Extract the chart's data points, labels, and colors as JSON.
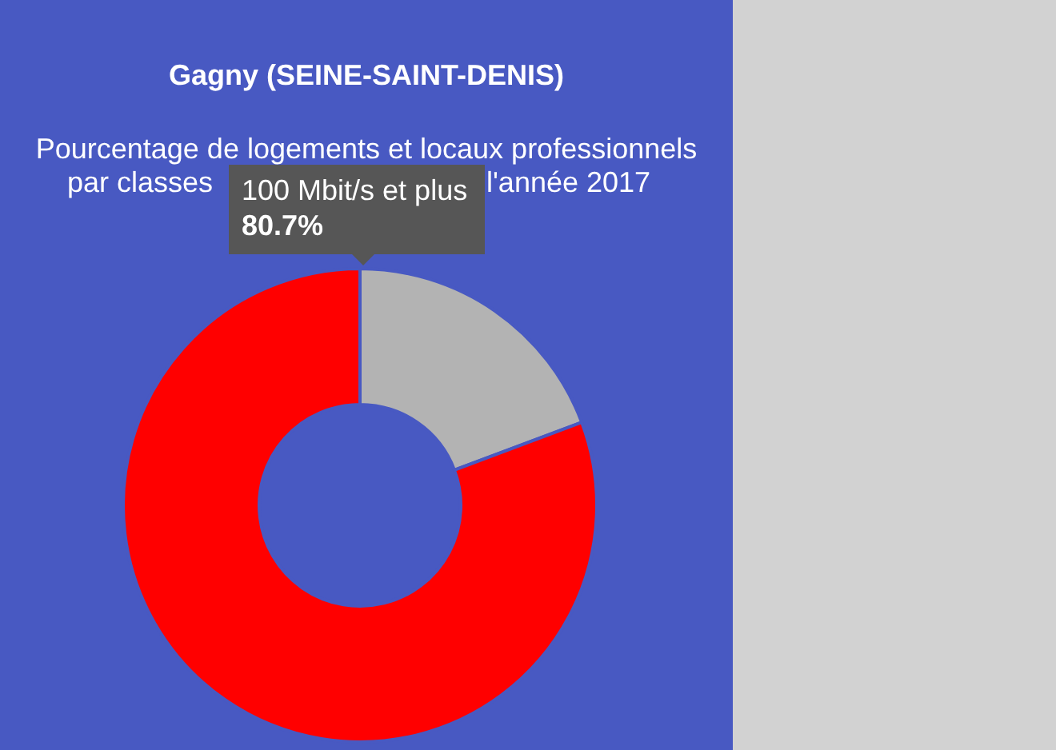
{
  "chart_data": {
    "type": "donut",
    "title": "Gagny (SEINE-SAINT-DENIS)",
    "subtitle": "Pourcentage de logements et locaux professionnels",
    "annotations": [
      "par classes",
      "l'année 2017"
    ],
    "categories": [
      null,
      "100 Mbit/s et plus"
    ],
    "values": [
      19.3,
      80.7
    ],
    "colors": [
      "#b3b3b3",
      "#ff0000"
    ],
    "value_labels": [
      null,
      "80.7%"
    ]
  }
}
